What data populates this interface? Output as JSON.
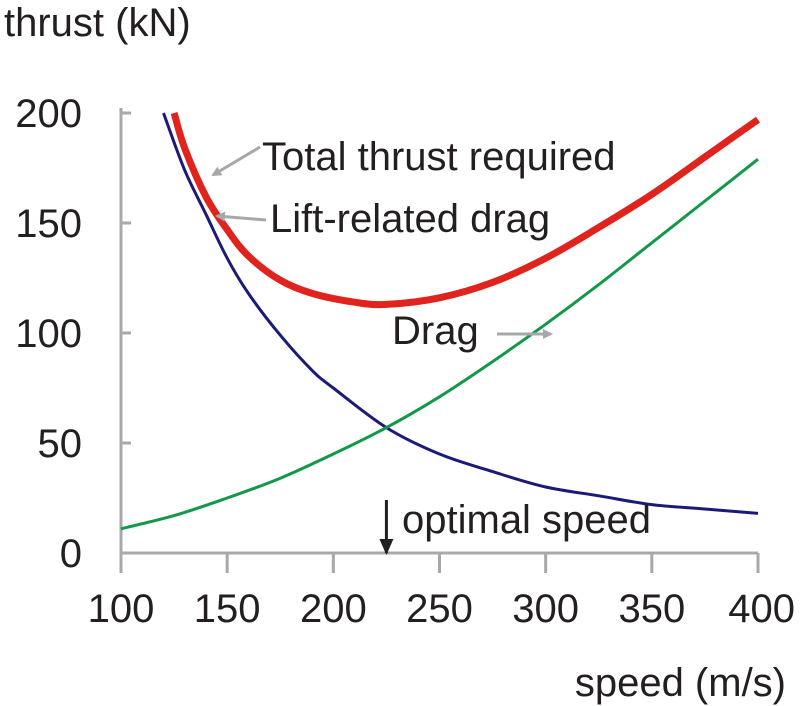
{
  "chart_data": {
    "type": "line",
    "ylabel": "thrust (kN)",
    "xlabel": "speed (m/s)",
    "xlim": [
      100,
      400
    ],
    "ylim": [
      0,
      200
    ],
    "x_ticks": [
      100,
      150,
      200,
      250,
      300,
      350,
      400
    ],
    "y_ticks": [
      0,
      50,
      100,
      150,
      200
    ],
    "grid": false,
    "series": [
      {
        "name": "Total thrust required",
        "color": "#e0231c",
        "x": [
          125,
          130,
          140,
          150,
          160,
          175,
          190,
          210,
          225,
          250,
          275,
          300,
          325,
          350,
          375,
          400
        ],
        "y": [
          200,
          184,
          162,
          147,
          135,
          124,
          118,
          114,
          113,
          116,
          123,
          134,
          148,
          163,
          180,
          197
        ]
      },
      {
        "name": "Lift-related drag",
        "color": "#1c1a78",
        "x": [
          120,
          130,
          140,
          150,
          160,
          175,
          190,
          200,
          225,
          250,
          275,
          300,
          325,
          350,
          375,
          400
        ],
        "y": [
          200,
          174,
          154,
          134,
          118,
          99,
          83,
          75,
          57,
          45,
          37,
          30,
          26,
          22,
          20,
          18
        ]
      },
      {
        "name": "Drag",
        "color": "#13984a",
        "x": [
          100,
          125,
          150,
          175,
          200,
          225,
          250,
          275,
          300,
          325,
          350,
          375,
          400
        ],
        "y": [
          11,
          17,
          25,
          34,
          45,
          57,
          71,
          87,
          104,
          122,
          141,
          160,
          179
        ]
      }
    ],
    "annotations": {
      "total_label": "Total thrust required",
      "lift_label": "Lift-related drag",
      "drag_label": "Drag",
      "optimal_label": "optimal speed",
      "optimal_x": 225
    },
    "arrow_color": "#a6a8ab",
    "axis_color": "#a6a8ab",
    "text_color": "#231f20"
  }
}
